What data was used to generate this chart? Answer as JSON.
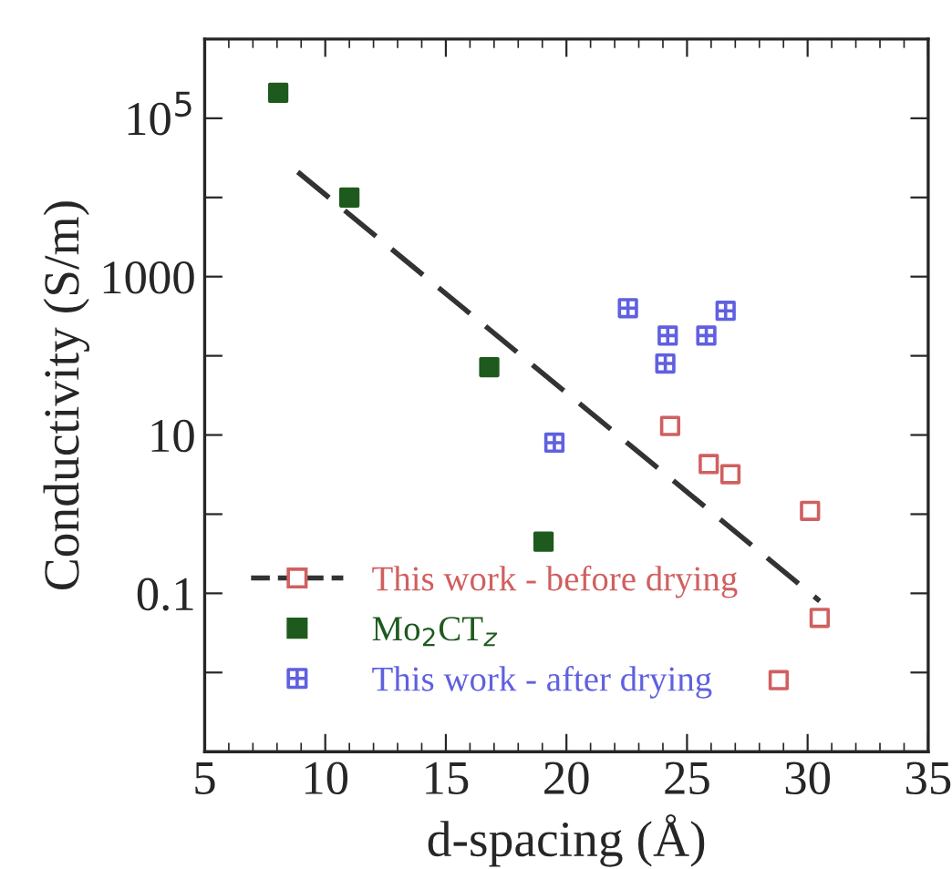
{
  "chart_data": {
    "type": "scatter",
    "xlabel": "d-spacing (Å)",
    "ylabel": "Conductivity (S/m)",
    "log": "y",
    "xlim": [
      5,
      35
    ],
    "xticks": [
      5,
      10,
      15,
      20,
      25,
      30,
      35
    ],
    "ylim": [
      0.001,
      1000000
    ],
    "yticks": [
      {
        "value": 0.01,
        "label": null
      },
      0.1,
      {
        "value": 1,
        "label": null
      },
      10,
      {
        "value": 100,
        "label": null
      },
      1000,
      {
        "value": 10000,
        "label": null
      },
      {
        "value": 100000,
        "label": "10$^{5}$"
      }
    ],
    "legend": "bottom left",
    "grid": false,
    "series": [
      {
        "name": "This work - before drying",
        "color": "#d06060",
        "marker": "square",
        "x": [
          24.3,
          25.9,
          26.8,
          30.1,
          30.5,
          28.8
        ],
        "values": [
          13,
          4.3,
          3.2,
          1.1,
          0.049,
          0.008
        ]
      },
      {
        "type": "line",
        "color": "#333333",
        "line_style": "dashed",
        "marker": "none",
        "x": [
          8.86,
          30.5
        ],
        "values": [
          21000,
          0.08
        ]
      },
      {
        "name": "Mo$_{2}$CT$_{z}$",
        "color": "#1e5a1e",
        "marker": "square",
        "x": [
          8.05,
          11.0,
          16.8,
          19.05
        ],
        "values": [
          210000,
          10000,
          72,
          0.45
        ]
      },
      {
        "name": "This work - after drying",
        "color": "#6060e0",
        "marker": "cross",
        "x": [
          22.55,
          24.2,
          25.8,
          26.6,
          24.1,
          19.5
        ],
        "values": [
          400,
          180,
          180,
          370,
          80,
          8
        ]
      }
    ]
  }
}
